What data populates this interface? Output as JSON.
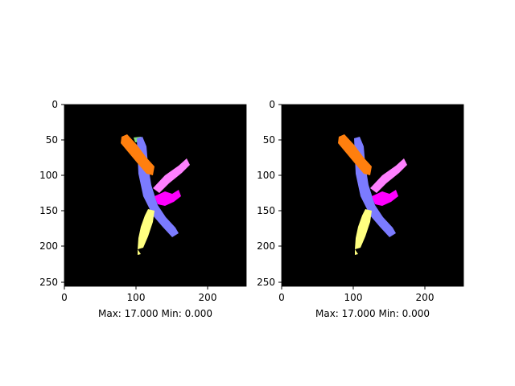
{
  "panels": [
    {
      "id": "left",
      "xlabel": "Max: 17.000 Min: 0.000",
      "x_ticks": [
        "0",
        "100",
        "200"
      ],
      "y_ticks": [
        "0",
        "50",
        "100",
        "150",
        "200",
        "250"
      ],
      "x_tick_values": [
        0,
        100,
        200
      ],
      "y_tick_values": [
        0,
        50,
        100,
        150,
        200,
        250
      ],
      "image_extent": [
        0,
        256
      ],
      "background_color": "#000000"
    },
    {
      "id": "right",
      "xlabel": "Max: 17.000 Min: 0.000",
      "x_ticks": [
        "0",
        "100",
        "200"
      ],
      "y_ticks": [
        "0",
        "50",
        "100",
        "150",
        "200",
        "250"
      ],
      "x_tick_values": [
        0,
        100,
        200
      ],
      "y_tick_values": [
        0,
        50,
        100,
        150,
        200,
        250
      ],
      "image_extent": [
        0,
        256
      ],
      "background_color": "#000000"
    }
  ],
  "segment_colors": {
    "orange": "#ff7f0e",
    "lavender_blue": "#7b7bff",
    "pink": "#ff80ff",
    "magenta": "#ff00ff",
    "pale_yellow": "#ffff80",
    "light_green": "#7fe07f"
  }
}
